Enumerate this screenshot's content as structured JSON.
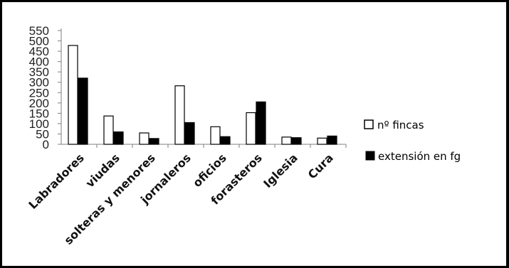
{
  "chart_data": {
    "type": "bar",
    "categories": [
      "Labradores",
      "viudas",
      "solteras y menores",
      "jornaleros",
      "oficios",
      "forasteros",
      "Iglesia",
      "Cura"
    ],
    "series": [
      {
        "name": "nº fincas",
        "values": [
          478,
          137,
          55,
          283,
          85,
          153,
          35,
          30
        ],
        "color": "#ffffff"
      },
      {
        "name": "extensión en fg",
        "values": [
          320,
          60,
          28,
          105,
          37,
          205,
          32,
          40
        ],
        "color": "#000000"
      }
    ],
    "yticks": [
      "0",
      "50",
      "100",
      "150",
      "200",
      "250",
      "300",
      "350",
      "400",
      "450",
      "500",
      "550"
    ],
    "ylim": [
      0,
      550
    ],
    "legend_position": "right",
    "grid": false
  }
}
